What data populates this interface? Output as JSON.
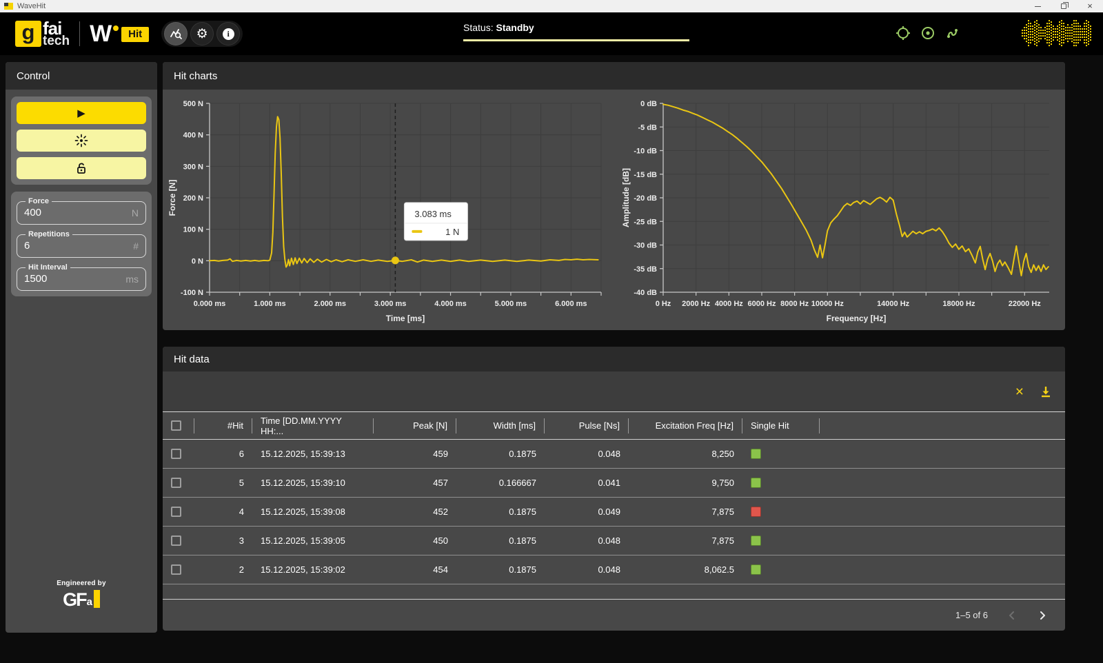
{
  "titlebar": {
    "title": "WaveHit"
  },
  "header": {
    "logo": {
      "g": "g",
      "fai": "fai",
      "tech": "tech",
      "w": "W",
      "hit": "Hit"
    },
    "toolbar_icons": [
      "chart-analysis",
      "settings-gear",
      "info"
    ],
    "status_label": "Status:",
    "status_value": "Standby",
    "status_icons": [
      "target-circle",
      "record-dot",
      "probe-cable"
    ],
    "waveform_bars": [
      0.3,
      0.5,
      0.7,
      0.95,
      0.8,
      0.55,
      0.85,
      1,
      0.7,
      0.45,
      0.25,
      0.5,
      0.75,
      1,
      0.85,
      0.6,
      0.35,
      0.6,
      0.9,
      1,
      0.75,
      0.5,
      0.7,
      0.45,
      0.65,
      0.95,
      1,
      0.8,
      0.55,
      0.4,
      0.75,
      1,
      0.85,
      0.55
    ]
  },
  "sidebar": {
    "title": "Control",
    "buttons": [
      "play",
      "laser-point",
      "unlock"
    ],
    "fields": [
      {
        "label": "Force",
        "value": "400",
        "unit": "N"
      },
      {
        "label": "Repetitions",
        "value": "6",
        "unit": "#"
      },
      {
        "label": "Hit Interval",
        "value": "1500",
        "unit": "ms"
      }
    ],
    "engineered_by": "Engineered by",
    "logo": {
      "gf": "GF",
      "a": "a"
    }
  },
  "charts_panel": {
    "title": "Hit charts"
  },
  "chart_data": [
    {
      "type": "line",
      "name": "force-time",
      "xlabel": "Time [ms]",
      "ylabel": "Force [N]",
      "xlim": [
        0,
        6.5
      ],
      "ylim": [
        -100,
        500
      ],
      "x_tick_vals": [
        0,
        1,
        2,
        3,
        4,
        5,
        6
      ],
      "x_tick_labels": [
        "0.000 ms",
        "1.000 ms",
        "2.000 ms",
        "3.000 ms",
        "4.000 ms",
        "5.000 ms",
        "6.000 ms"
      ],
      "x_grid_step": 0.5,
      "y_tick_vals": [
        -100,
        0,
        100,
        200,
        300,
        400,
        500
      ],
      "y_tick_labels": [
        "-100 N",
        "0 N",
        "100 N",
        "200 N",
        "300 N",
        "400 N",
        "500 N"
      ],
      "cursor": {
        "x": 3.083,
        "y": 1,
        "tooltip_time": "3.083 ms",
        "tooltip_value": "1 N"
      },
      "points": [
        [
          0,
          0
        ],
        [
          0.08,
          1
        ],
        [
          0.15,
          -1
        ],
        [
          0.22,
          1
        ],
        [
          0.3,
          2
        ],
        [
          0.34,
          6
        ],
        [
          0.38,
          -2
        ],
        [
          0.45,
          1
        ],
        [
          0.52,
          -1
        ],
        [
          0.6,
          1
        ],
        [
          0.68,
          -1
        ],
        [
          0.75,
          1
        ],
        [
          0.82,
          -1
        ],
        [
          0.9,
          1
        ],
        [
          0.97,
          0
        ],
        [
          1.0,
          2
        ],
        [
          1.03,
          25
        ],
        [
          1.05,
          90
        ],
        [
          1.07,
          210
        ],
        [
          1.09,
          340
        ],
        [
          1.11,
          425
        ],
        [
          1.13,
          458
        ],
        [
          1.15,
          448
        ],
        [
          1.17,
          390
        ],
        [
          1.19,
          275
        ],
        [
          1.21,
          140
        ],
        [
          1.23,
          45
        ],
        [
          1.25,
          5
        ],
        [
          1.27,
          -20
        ],
        [
          1.29,
          -14
        ],
        [
          1.31,
          4
        ],
        [
          1.33,
          -16
        ],
        [
          1.36,
          8
        ],
        [
          1.39,
          -12
        ],
        [
          1.42,
          9
        ],
        [
          1.45,
          -9
        ],
        [
          1.49,
          8
        ],
        [
          1.53,
          -7
        ],
        [
          1.57,
          7
        ],
        [
          1.62,
          -6
        ],
        [
          1.67,
          6
        ],
        [
          1.73,
          -5
        ],
        [
          1.79,
          5
        ],
        [
          1.86,
          -4
        ],
        [
          1.94,
          4
        ],
        [
          2.02,
          -3
        ],
        [
          2.1,
          3
        ],
        [
          2.2,
          -3
        ],
        [
          2.3,
          3
        ],
        [
          2.42,
          -2
        ],
        [
          2.55,
          3
        ],
        [
          2.68,
          -2
        ],
        [
          2.8,
          2
        ],
        [
          2.95,
          -2
        ],
        [
          3.083,
          1
        ],
        [
          3.2,
          -2
        ],
        [
          3.35,
          3
        ],
        [
          3.45,
          -4
        ],
        [
          3.55,
          2
        ],
        [
          3.7,
          -2
        ],
        [
          3.85,
          2
        ],
        [
          4.0,
          -2
        ],
        [
          4.15,
          2
        ],
        [
          4.3,
          -2
        ],
        [
          4.5,
          2
        ],
        [
          4.7,
          -2
        ],
        [
          4.9,
          2
        ],
        [
          5.1,
          -2
        ],
        [
          5.3,
          2
        ],
        [
          5.5,
          -1
        ],
        [
          5.65,
          3
        ],
        [
          5.8,
          1
        ],
        [
          5.9,
          4
        ],
        [
          6.0,
          3
        ],
        [
          6.1,
          5
        ],
        [
          6.2,
          3
        ],
        [
          6.3,
          4
        ],
        [
          6.45,
          3
        ]
      ]
    },
    {
      "type": "line",
      "name": "frequency-response",
      "xlabel": "Frequency [Hz]",
      "ylabel": "Amplitude [dB]",
      "xlim": [
        0,
        23500
      ],
      "ylim": [
        -40,
        0
      ],
      "x_tick_vals": [
        0,
        2000,
        4000,
        6000,
        8000,
        10000,
        14000,
        18000,
        22000
      ],
      "x_tick_labels": [
        "0 Hz",
        "2000 Hz",
        "4000 Hz",
        "6000 Hz",
        "8000 Hz",
        "10000 Hz",
        "14000 Hz",
        "18000 Hz",
        "22000 Hz"
      ],
      "x_grid_step": 2000,
      "y_tick_vals": [
        -40,
        -35,
        -30,
        -25,
        -20,
        -15,
        -10,
        -5,
        0
      ],
      "y_tick_labels": [
        "-40 dB",
        "-35 dB",
        "-30 dB",
        "-25 dB",
        "-20 dB",
        "-15 dB",
        "-10 dB",
        "-5 dB",
        "0 dB"
      ],
      "points": [
        [
          0,
          -0.2
        ],
        [
          300,
          -0.4
        ],
        [
          600,
          -0.7
        ],
        [
          900,
          -1
        ],
        [
          1200,
          -1.4
        ],
        [
          1500,
          -1.7
        ],
        [
          1800,
          -2.1
        ],
        [
          2100,
          -2.5
        ],
        [
          2400,
          -3
        ],
        [
          2700,
          -3.5
        ],
        [
          3000,
          -4
        ],
        [
          3300,
          -4.6
        ],
        [
          3600,
          -5.2
        ],
        [
          3900,
          -5.9
        ],
        [
          4200,
          -6.6
        ],
        [
          4500,
          -7.4
        ],
        [
          4800,
          -8.3
        ],
        [
          5100,
          -9.2
        ],
        [
          5400,
          -10.2
        ],
        [
          5700,
          -11.3
        ],
        [
          6000,
          -12.4
        ],
        [
          6300,
          -13.7
        ],
        [
          6600,
          -15
        ],
        [
          6900,
          -16.5
        ],
        [
          7200,
          -18
        ],
        [
          7500,
          -19.7
        ],
        [
          7800,
          -21.4
        ],
        [
          8100,
          -23.2
        ],
        [
          8400,
          -25
        ],
        [
          8700,
          -26.8
        ],
        [
          9000,
          -29
        ],
        [
          9200,
          -31
        ],
        [
          9400,
          -32.6
        ],
        [
          9550,
          -30
        ],
        [
          9700,
          -32.7
        ],
        [
          9850,
          -30
        ],
        [
          10000,
          -27
        ],
        [
          10200,
          -25.3
        ],
        [
          10400,
          -24.5
        ],
        [
          10600,
          -23.8
        ],
        [
          10800,
          -22.8
        ],
        [
          11000,
          -21.8
        ],
        [
          11200,
          -21.2
        ],
        [
          11400,
          -21.6
        ],
        [
          11600,
          -21
        ],
        [
          11800,
          -20.7
        ],
        [
          12000,
          -21.3
        ],
        [
          12200,
          -20.6
        ],
        [
          12400,
          -21
        ],
        [
          12600,
          -21.4
        ],
        [
          12800,
          -20.8
        ],
        [
          13000,
          -20.2
        ],
        [
          13200,
          -19.9
        ],
        [
          13400,
          -20.3
        ],
        [
          13600,
          -20.9
        ],
        [
          13800,
          -19.9
        ],
        [
          14000,
          -20.5
        ],
        [
          14200,
          -23.5
        ],
        [
          14400,
          -26
        ],
        [
          14550,
          -28.2
        ],
        [
          14700,
          -27.3
        ],
        [
          14850,
          -28.3
        ],
        [
          15000,
          -27.8
        ],
        [
          15200,
          -27.1
        ],
        [
          15400,
          -27.6
        ],
        [
          15600,
          -27.2
        ],
        [
          15800,
          -27.6
        ],
        [
          16000,
          -27.1
        ],
        [
          16200,
          -26.9
        ],
        [
          16400,
          -26.6
        ],
        [
          16600,
          -27
        ],
        [
          16800,
          -26.4
        ],
        [
          17000,
          -27.2
        ],
        [
          17200,
          -28.3
        ],
        [
          17400,
          -29.6
        ],
        [
          17600,
          -30.5
        ],
        [
          17800,
          -29.8
        ],
        [
          18000,
          -30.9
        ],
        [
          18200,
          -30.2
        ],
        [
          18400,
          -31.4
        ],
        [
          18600,
          -30.8
        ],
        [
          18800,
          -32.2
        ],
        [
          19000,
          -33.8
        ],
        [
          19150,
          -31.5
        ],
        [
          19300,
          -30.3
        ],
        [
          19450,
          -33
        ],
        [
          19600,
          -35.2
        ],
        [
          19750,
          -33
        ],
        [
          19900,
          -31.8
        ],
        [
          20050,
          -33.4
        ],
        [
          20200,
          -35.6
        ],
        [
          20350,
          -34
        ],
        [
          20500,
          -33.2
        ],
        [
          20650,
          -34.4
        ],
        [
          20800,
          -33.6
        ],
        [
          21000,
          -34.8
        ],
        [
          21200,
          -36.2
        ],
        [
          21350,
          -33
        ],
        [
          21500,
          -30.2
        ],
        [
          21650,
          -33.5
        ],
        [
          21800,
          -36.5
        ],
        [
          21950,
          -33.4
        ],
        [
          22100,
          -31.8
        ],
        [
          22250,
          -34.6
        ],
        [
          22400,
          -35.8
        ],
        [
          22550,
          -34.2
        ],
        [
          22700,
          -35.4
        ],
        [
          22850,
          -34.4
        ],
        [
          23000,
          -35.6
        ],
        [
          23150,
          -34.2
        ],
        [
          23300,
          -35.2
        ],
        [
          23450,
          -34.6
        ]
      ]
    }
  ],
  "table": {
    "title": "Hit data",
    "toolbar_icons": [
      "clear-x",
      "download"
    ],
    "columns": [
      "#Hit",
      "Time [DD.MM.YYYY HH:...",
      "Peak [N]",
      "Width [ms]",
      "Pulse [Ns]",
      "Excitation Freq [Hz]",
      "Single Hit"
    ],
    "rows": [
      {
        "hit": "6",
        "time": "15.12.2025, 15:39:13",
        "peak": "459",
        "width": "0.1875",
        "pulse": "0.048",
        "freq": "8,250",
        "single": "green"
      },
      {
        "hit": "5",
        "time": "15.12.2025, 15:39:10",
        "peak": "457",
        "width": "0.166667",
        "pulse": "0.041",
        "freq": "9,750",
        "single": "green"
      },
      {
        "hit": "4",
        "time": "15.12.2025, 15:39:08",
        "peak": "452",
        "width": "0.1875",
        "pulse": "0.049",
        "freq": "7,875",
        "single": "red"
      },
      {
        "hit": "3",
        "time": "15.12.2025, 15:39:05",
        "peak": "450",
        "width": "0.1875",
        "pulse": "0.048",
        "freq": "7,875",
        "single": "green"
      },
      {
        "hit": "2",
        "time": "15.12.2025, 15:39:02",
        "peak": "454",
        "width": "0.1875",
        "pulse": "0.048",
        "freq": "8,062.5",
        "single": "green"
      }
    ],
    "pagination": {
      "label": "1–5 of 6"
    }
  },
  "colors": {
    "accent": "#fcd400",
    "chart_line": "#eac613",
    "pale_yellow": "#f5f2a6",
    "status_green": "#9ccc65",
    "hit_green": "#8bc34a",
    "hit_red": "#e0564c"
  }
}
